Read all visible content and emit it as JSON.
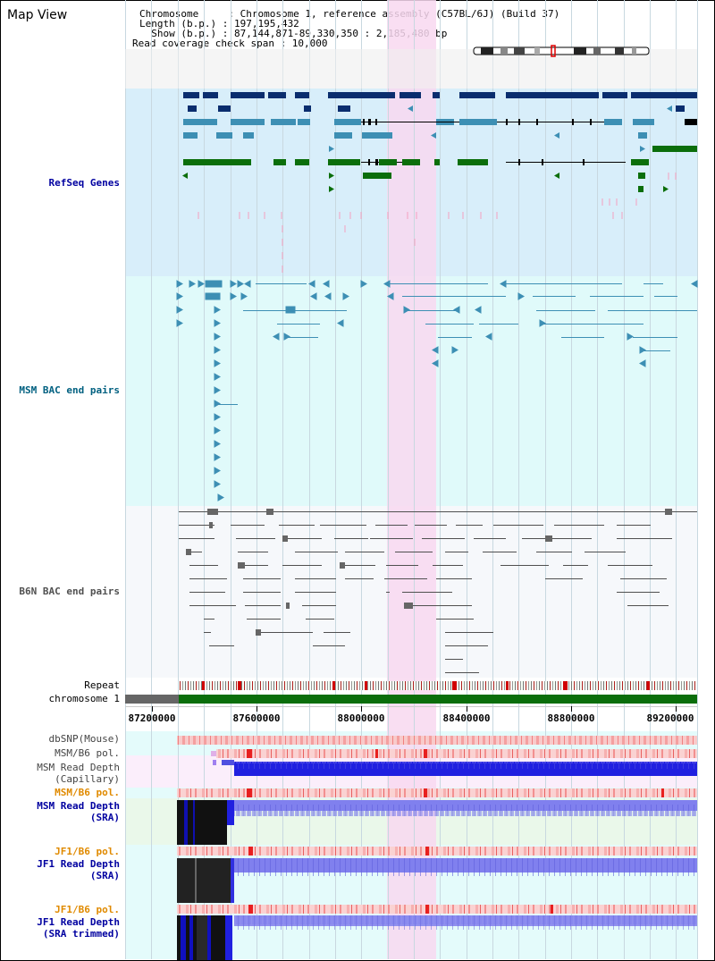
{
  "view_title": "Map View",
  "info": {
    "chromosome": "Chromosome     : Chromosome 1, reference assembly (C57BL/6J) (Build 37)",
    "length": "Length (b.p.) : 197,195,432",
    "show": "  Show (b.p.) : 87,144,871-89,330,350 : 2,185,480 bp",
    "coverage": "Read coverage check span : 10,000"
  },
  "tracks": {
    "refseq": {
      "label": "RefSeq Genes",
      "color": "#0000a0"
    },
    "msm_bac": {
      "label": "MSM BAC end pairs",
      "color": "#006080"
    },
    "b6n_bac": {
      "label": "B6N BAC end pairs",
      "color": "#505050"
    },
    "repeat": {
      "label": "Repeat"
    },
    "chrom": {
      "label": "chromosome 1"
    },
    "dbsnp": {
      "label": "dbSNP(Mouse)"
    },
    "msm_b6_pol_1": {
      "label": "MSM/B6 pol."
    },
    "msm_depth_cap": {
      "label": "MSM Read Depth\n(Capillary)"
    },
    "msm_b6_pol_2": {
      "label": "MSM/B6 pol."
    },
    "msm_depth_sra": {
      "label": "MSM Read Depth\n(SRA)"
    },
    "jf1_b6_pol_1": {
      "label": "JF1/B6 pol."
    },
    "jf1_depth_sra": {
      "label": "JF1 Read Depth\n(SRA)"
    },
    "jf1_b6_pol_2": {
      "label": "JF1/B6 pol."
    },
    "jf1_depth_trim": {
      "label": "JF1 Read Depth\n(SRA trimmed)"
    }
  },
  "axis": {
    "ticks": [
      "87200000",
      "87600000",
      "88000000",
      "88400000",
      "88800000",
      "89200000"
    ]
  },
  "colors": {
    "highlight": "#f8d8f0",
    "refseq_bg": "#d8eefa",
    "msm_bg": "#e0fafa",
    "b6n_bg": "#f6f8fb",
    "dark_blue": "#0a2d6e",
    "teal": "#3d8fb4",
    "green": "#0b6e0b",
    "pink": "#f4a0c0",
    "orange_label": "#e08a00"
  }
}
